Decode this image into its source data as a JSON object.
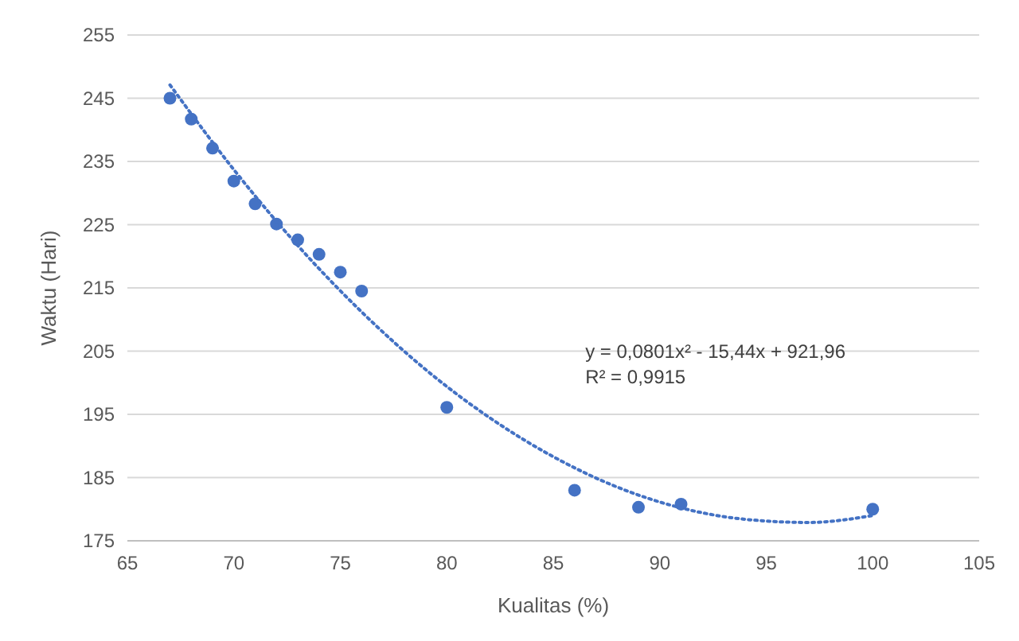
{
  "chart_data": {
    "type": "scatter",
    "xlabel": "Kualitas (%)",
    "ylabel": "Waktu (Hari)",
    "xlim": [
      65,
      105
    ],
    "xticks": [
      65,
      70,
      75,
      80,
      85,
      90,
      95,
      100,
      105
    ],
    "ylim": [
      175,
      255
    ],
    "yticks": [
      175,
      185,
      195,
      205,
      215,
      225,
      235,
      245,
      255
    ],
    "grid": "y",
    "series": [
      {
        "color": "#4472c4",
        "marker": "circle",
        "x": [
          67,
          68,
          69,
          70,
          71,
          72,
          73,
          74,
          75,
          76,
          80,
          86,
          89,
          91,
          100
        ],
        "values": [
          245,
          241.7,
          237.1,
          231.9,
          228.3,
          225.1,
          222.6,
          220.3,
          217.5,
          214.5,
          196.1,
          183,
          180.3,
          180.8,
          180
        ]
      },
      {
        "type": "line",
        "color": "#4472c4",
        "line_style": "dotted",
        "x": [
          67,
          70,
          73,
          76,
          79,
          82,
          85,
          88,
          91,
          94,
          97,
          100
        ],
        "values": [
          247.1,
          233.7,
          221.7,
          211.2,
          202.1,
          194.5,
          188.3,
          183.5,
          180.2,
          178.4,
          177.9,
          179
        ]
      }
    ],
    "annotations": [
      "y = 0,0801x² - 15,44x + 921,96",
      "R² = 0,9915"
    ]
  }
}
